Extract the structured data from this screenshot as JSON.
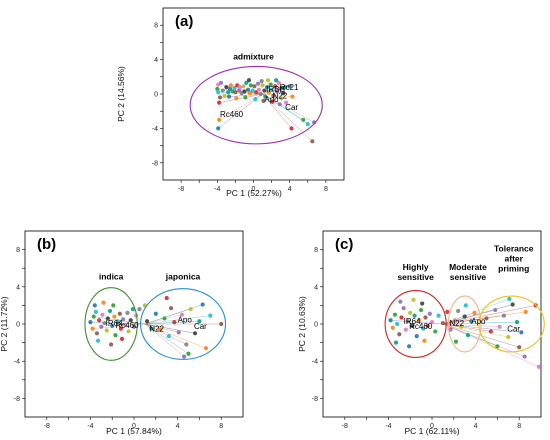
{
  "colors": {
    "admixture_ellipse": "#9b30b5",
    "indica_ellipse": "#3f8f2f",
    "japonica_ellipse": "#1f8fd6",
    "highly_sensitive_ellipse": "#d62020",
    "moderate_sensitive_ellipse": "#f2b48a",
    "tolerance_ellipse": "#f2c21a",
    "point_palette": [
      "#1f77b4",
      "#ff7f0e",
      "#2ca02c",
      "#17becf",
      "#8c564b",
      "#d62728",
      "#9467bd",
      "#e377c2",
      "#7f7f7f",
      "#bcbd22",
      "#3c3c3c",
      "#00a08a"
    ]
  },
  "chart_data": [
    {
      "type": "scatter",
      "panel_label": "(a)",
      "xlabel": "PC 1 (52.27%)",
      "ylabel": "PC 2 (14.56%)",
      "xticks": [
        -8,
        -6,
        -4,
        -2,
        0,
        2,
        4,
        6,
        8
      ],
      "yticks": [
        -8,
        -6,
        -4,
        -2,
        0,
        2,
        4,
        6,
        8
      ],
      "xticklabels": [
        "-8",
        "",
        "-4",
        "",
        "0",
        "",
        "4",
        "",
        "8"
      ],
      "yticklabels": [
        "-8",
        "",
        "-4",
        "",
        "0",
        "",
        "4",
        "",
        "8"
      ],
      "xlim": [
        -10,
        10
      ],
      "ylim": [
        -10,
        10
      ],
      "groups": [
        {
          "label": "admixture",
          "center": [
            0.3,
            -1.3
          ],
          "rx": 7.3,
          "ry": 4.5,
          "color_key": "admixture_ellipse",
          "label_at": [
            0,
            4.0
          ]
        }
      ],
      "points": [
        [
          -3.9,
          -4.0
        ],
        [
          -3.8,
          -3.0
        ],
        [
          -4.0,
          0.6
        ],
        [
          -3.9,
          0.2
        ],
        [
          -3.7,
          -0.4
        ],
        [
          -3.8,
          -1.0
        ],
        [
          -3.6,
          1.3
        ],
        [
          -3.9,
          1.1
        ],
        [
          -3.4,
          0.4
        ],
        [
          -3.2,
          -0.2
        ],
        [
          -3.0,
          0.8
        ],
        [
          -2.8,
          0.2
        ],
        [
          -2.6,
          0.6
        ],
        [
          -2.5,
          1.0
        ],
        [
          -2.3,
          0.3
        ],
        [
          -2.1,
          0.7
        ],
        [
          -2.0,
          0.2
        ],
        [
          -1.8,
          1.0
        ],
        [
          -1.6,
          0.4
        ],
        [
          -1.5,
          0.8
        ],
        [
          -1.3,
          0.1
        ],
        [
          -1.1,
          0.9
        ],
        [
          -1.0,
          0.3
        ],
        [
          -0.8,
          1.3
        ],
        [
          -0.6,
          0.5
        ],
        [
          -0.4,
          0.1
        ],
        [
          -0.3,
          1.0
        ],
        [
          -0.1,
          0.4
        ],
        [
          0.1,
          0.9
        ],
        [
          0.3,
          0.2
        ],
        [
          0.5,
          1.2
        ],
        [
          0.6,
          0.5
        ],
        [
          0.8,
          0.0
        ],
        [
          1.0,
          1.0
        ],
        [
          1.2,
          0.4
        ],
        [
          1.3,
          -0.3
        ],
        [
          1.5,
          0.8
        ],
        [
          1.7,
          0.2
        ],
        [
          1.9,
          1.1
        ],
        [
          2.0,
          0.5
        ],
        [
          2.2,
          -0.2
        ],
        [
          2.4,
          0.9
        ],
        [
          2.6,
          0.3
        ],
        [
          2.8,
          1.3
        ],
        [
          3.0,
          0.6
        ],
        [
          3.1,
          -0.5
        ],
        [
          3.3,
          0.1
        ],
        [
          3.5,
          0.8
        ],
        [
          -2.7,
          -0.3
        ],
        [
          -1.9,
          -0.5
        ],
        [
          -0.9,
          -0.4
        ],
        [
          0.2,
          -0.6
        ],
        [
          1.1,
          -0.8
        ],
        [
          2.1,
          -0.9
        ],
        [
          2.9,
          -1.2
        ],
        [
          3.6,
          -1.0
        ],
        [
          0.9,
          1.5
        ],
        [
          1.6,
          1.6
        ],
        [
          -0.5,
          1.6
        ],
        [
          2.5,
          1.6
        ],
        [
          4.0,
          0.9
        ],
        [
          4.3,
          -0.3
        ],
        [
          5.5,
          -3.0
        ],
        [
          6.0,
          -3.5
        ],
        [
          6.5,
          -5.5
        ],
        [
          4.2,
          -4.0
        ],
        [
          6.7,
          -3.3
        ]
      ],
      "labeled_points": [
        {
          "text": "Rc460",
          "x": -3.7,
          "y": -2.3
        },
        {
          "text": "Car",
          "x": 3.5,
          "y": -1.5
        },
        {
          "text": "Apo",
          "x": 1.2,
          "y": -0.6
        },
        {
          "text": "Rc21",
          "x": 2.9,
          "y": 0.8
        },
        {
          "text": "IRBB",
          "x": 1.4,
          "y": 0.6
        },
        {
          "text": "N22",
          "x": 2.1,
          "y": -0.2
        }
      ]
    },
    {
      "type": "scatter",
      "panel_label": "(b)",
      "xlabel": "PC 1 (57.84%)",
      "ylabel": "PC 2 (11.72%)",
      "xticks": [
        -8,
        -6,
        -4,
        -2,
        0,
        2,
        4,
        6,
        8
      ],
      "yticks": [
        -8,
        -6,
        -4,
        -2,
        0,
        2,
        4,
        6,
        8
      ],
      "xticklabels": [
        "-8",
        "",
        "-4",
        "",
        "0",
        "",
        "4",
        "",
        "8"
      ],
      "yticklabels": [
        "-8",
        "",
        "-4",
        "",
        "0",
        "",
        "4",
        "",
        "8"
      ],
      "xlim": [
        -10,
        10
      ],
      "ylim": [
        -10,
        10
      ],
      "groups": [
        {
          "label": "indica",
          "center": [
            -2.1,
            0.0
          ],
          "rx": 2.4,
          "ry": 3.9,
          "color_key": "indica_ellipse",
          "label_at": [
            -2.1,
            4.8
          ]
        },
        {
          "label": "japonica",
          "center": [
            4.5,
            0.0
          ],
          "rx": 3.9,
          "ry": 3.8,
          "color_key": "japonica_ellipse",
          "label_at": [
            4.5,
            4.8
          ]
        }
      ],
      "points": [
        [
          -4.0,
          0.2
        ],
        [
          -3.8,
          -0.5
        ],
        [
          -3.7,
          0.8
        ],
        [
          -3.5,
          1.3
        ],
        [
          -3.4,
          -1.0
        ],
        [
          -3.2,
          0.4
        ],
        [
          -3.0,
          -0.3
        ],
        [
          -2.9,
          1.0
        ],
        [
          -2.7,
          0.1
        ],
        [
          -2.5,
          -0.7
        ],
        [
          -2.4,
          0.6
        ],
        [
          -2.2,
          1.4
        ],
        [
          -2.0,
          -0.2
        ],
        [
          -1.8,
          0.8
        ],
        [
          -1.7,
          -1.2
        ],
        [
          -1.5,
          0.3
        ],
        [
          -1.3,
          1.1
        ],
        [
          -1.2,
          -0.5
        ],
        [
          -1.0,
          0.5
        ],
        [
          -0.8,
          -0.1
        ],
        [
          -0.6,
          1.2
        ],
        [
          -0.5,
          -0.8
        ],
        [
          -0.3,
          0.4
        ],
        [
          -0.1,
          1.6
        ],
        [
          -3.6,
          2.0
        ],
        [
          -2.8,
          2.3
        ],
        [
          -1.9,
          2.0
        ],
        [
          -3.3,
          -1.8
        ],
        [
          -2.1,
          -2.2
        ],
        [
          -1.1,
          -1.6
        ],
        [
          0.0,
          -0.3
        ],
        [
          0.2,
          0.9
        ],
        [
          0.5,
          1.6
        ],
        [
          1.0,
          2.0
        ],
        [
          1.2,
          0.3
        ],
        [
          1.6,
          -0.5
        ],
        [
          2.0,
          1.1
        ],
        [
          2.4,
          -0.6
        ],
        [
          2.8,
          0.6
        ],
        [
          3.2,
          -1.3
        ],
        [
          3.4,
          1.7
        ],
        [
          3.7,
          0.2
        ],
        [
          4.1,
          -0.9
        ],
        [
          4.4,
          1.0
        ],
        [
          4.8,
          -2.2
        ],
        [
          5.2,
          1.6
        ],
        [
          5.6,
          -1.0
        ],
        [
          6.0,
          0.3
        ],
        [
          6.3,
          2.1
        ],
        [
          6.6,
          -2.6
        ],
        [
          5.0,
          -3.2
        ],
        [
          7.0,
          0.9
        ],
        [
          8.0,
          0.0
        ],
        [
          3.0,
          2.8
        ],
        [
          4.6,
          -3.5
        ]
      ],
      "labeled_points": [
        {
          "text": "Apo",
          "x": 4.0,
          "y": 0.5
        },
        {
          "text": "Car",
          "x": 5.5,
          "y": -0.2
        },
        {
          "text": "N22",
          "x": 1.4,
          "y": -0.5
        },
        {
          "text": "IR64",
          "x": -2.6,
          "y": 0.1
        },
        {
          "text": "Rc460",
          "x": -1.7,
          "y": -0.1
        }
      ]
    },
    {
      "type": "scatter",
      "panel_label": "(c)",
      "xlabel": "PC 1 (62.11%)",
      "ylabel": "PC 2 (10.63%)",
      "xticks": [
        -8,
        -6,
        -4,
        -2,
        0,
        2,
        4,
        6,
        8
      ],
      "yticks": [
        -8,
        -6,
        -4,
        -2,
        0,
        2,
        4,
        6,
        8
      ],
      "xticklabels": [
        "-8",
        "",
        "-4",
        "",
        "0",
        "",
        "4",
        "",
        "8"
      ],
      "yticklabels": [
        "-8",
        "",
        "-4",
        "",
        "0",
        "",
        "4",
        "",
        "8"
      ],
      "xlim": [
        -10,
        10
      ],
      "ylim": [
        -10,
        10
      ],
      "groups": [
        {
          "label": "Highly sensitive",
          "label_lines": [
            "Highly",
            "sensitive"
          ],
          "center": [
            -1.5,
            0.0
          ],
          "rx": 2.8,
          "ry": 3.6,
          "color_key": "highly_sensitive_ellipse",
          "label_at": [
            -1.5,
            5.8
          ]
        },
        {
          "label": "Moderate sensitive",
          "label_lines": [
            "Moderate",
            "sensitive"
          ],
          "center": [
            3.0,
            0.0
          ],
          "rx": 1.5,
          "ry": 3.0,
          "color_key": "moderate_sensitive_ellipse",
          "label_at": [
            3.3,
            5.8
          ]
        },
        {
          "label": "Tolerance after priming",
          "label_lines": [
            "Tolerance",
            "after",
            "priming"
          ],
          "center": [
            7.3,
            0.0
          ],
          "rx": 3.0,
          "ry": 3.0,
          "color_key": "tolerance_ellipse",
          "label_at": [
            7.5,
            7.8
          ]
        }
      ],
      "points": [
        [
          -3.8,
          0.4
        ],
        [
          -3.6,
          -0.4
        ],
        [
          -3.4,
          1.0
        ],
        [
          -3.2,
          0.0
        ],
        [
          -3.0,
          -1.1
        ],
        [
          -2.8,
          0.7
        ],
        [
          -2.6,
          1.7
        ],
        [
          -2.4,
          -0.6
        ],
        [
          -2.2,
          0.3
        ],
        [
          -2.0,
          1.2
        ],
        [
          -1.8,
          -0.2
        ],
        [
          -1.6,
          0.9
        ],
        [
          -1.4,
          -1.3
        ],
        [
          -1.2,
          0.4
        ],
        [
          -1.0,
          1.5
        ],
        [
          -0.8,
          -0.5
        ],
        [
          -0.6,
          0.7
        ],
        [
          -0.4,
          -0.2
        ],
        [
          -0.2,
          1.1
        ],
        [
          0.0,
          0.2
        ],
        [
          -2.9,
          2.4
        ],
        [
          -1.7,
          2.6
        ],
        [
          -0.9,
          2.2
        ],
        [
          -3.3,
          -2.0
        ],
        [
          -2.1,
          -2.4
        ],
        [
          -0.7,
          -1.8
        ],
        [
          0.3,
          -0.8
        ],
        [
          0.6,
          0.9
        ],
        [
          1.0,
          0.1
        ],
        [
          1.4,
          1.3
        ],
        [
          1.7,
          -0.6
        ],
        [
          2.1,
          0.4
        ],
        [
          2.4,
          1.4
        ],
        [
          2.7,
          -0.3
        ],
        [
          3.0,
          0.8
        ],
        [
          3.3,
          -1.2
        ],
        [
          3.6,
          0.3
        ],
        [
          3.9,
          1.2
        ],
        [
          2.2,
          -1.9
        ],
        [
          3.1,
          2.0
        ],
        [
          5.0,
          0.6
        ],
        [
          5.4,
          -0.8
        ],
        [
          5.8,
          1.5
        ],
        [
          6.2,
          -0.3
        ],
        [
          6.6,
          0.9
        ],
        [
          7.0,
          -1.4
        ],
        [
          7.4,
          2.1
        ],
        [
          7.8,
          0.2
        ],
        [
          8.2,
          -0.9
        ],
        [
          8.6,
          1.3
        ],
        [
          6.0,
          -2.4
        ],
        [
          7.1,
          2.7
        ],
        [
          8.0,
          -2.5
        ],
        [
          9.5,
          2.0
        ],
        [
          8.5,
          -3.5
        ],
        [
          9.8,
          -4.6
        ]
      ],
      "labeled_points": [
        {
          "text": "Apo",
          "x": 3.6,
          "y": 0.3
        },
        {
          "text": "Car",
          "x": 6.9,
          "y": -0.5
        },
        {
          "text": "N22",
          "x": 1.6,
          "y": 0.1
        },
        {
          "text": "IR64",
          "x": -2.6,
          "y": 0.3
        },
        {
          "text": "Rc460",
          "x": -2.1,
          "y": -0.2
        }
      ]
    }
  ]
}
